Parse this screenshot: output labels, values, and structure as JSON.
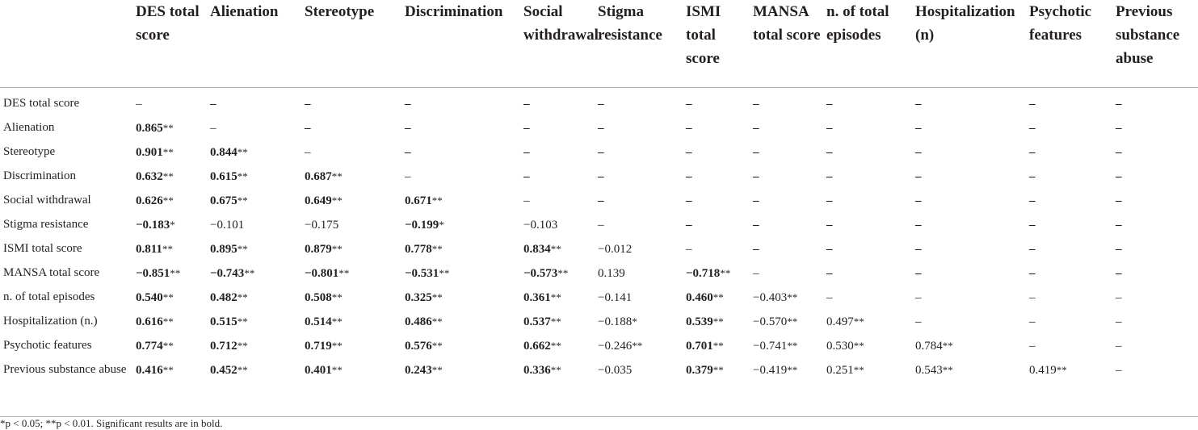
{
  "columns": [
    "DES total score",
    "Alienation",
    "Stereotype",
    "Discrimination",
    "Social withdrawal",
    "Stigma resistance",
    "ISMI total score",
    "MANSA total score",
    "n. of total episodes",
    "Hospitalization (n)",
    "Psychotic features",
    "Previous substance abuse"
  ],
  "rows": [
    {
      "label": "DES total score",
      "cells": [
        {
          "v": "–",
          "s": "",
          "b": false
        },
        {
          "v": "–",
          "s": "",
          "b": true
        },
        {
          "v": "–",
          "s": "",
          "b": true
        },
        {
          "v": "–",
          "s": "",
          "b": true
        },
        {
          "v": "–",
          "s": "",
          "b": true
        },
        {
          "v": "–",
          "s": "",
          "b": true
        },
        {
          "v": "–",
          "s": "",
          "b": true
        },
        {
          "v": "–",
          "s": "",
          "b": true
        },
        {
          "v": "–",
          "s": "",
          "b": true
        },
        {
          "v": "–",
          "s": "",
          "b": true
        },
        {
          "v": "–",
          "s": "",
          "b": true
        },
        {
          "v": "–",
          "s": "",
          "b": true
        }
      ]
    },
    {
      "label": "Alienation",
      "cells": [
        {
          "v": "0.865",
          "s": "**",
          "b": true
        },
        {
          "v": "–",
          "s": "",
          "b": false
        },
        {
          "v": "–",
          "s": "",
          "b": true
        },
        {
          "v": "–",
          "s": "",
          "b": true
        },
        {
          "v": "–",
          "s": "",
          "b": true
        },
        {
          "v": "–",
          "s": "",
          "b": true
        },
        {
          "v": "–",
          "s": "",
          "b": true
        },
        {
          "v": "–",
          "s": "",
          "b": true
        },
        {
          "v": "–",
          "s": "",
          "b": true
        },
        {
          "v": "–",
          "s": "",
          "b": true
        },
        {
          "v": "–",
          "s": "",
          "b": true
        },
        {
          "v": "–",
          "s": "",
          "b": true
        }
      ]
    },
    {
      "label": "Stereotype",
      "cells": [
        {
          "v": "0.901",
          "s": "**",
          "b": true
        },
        {
          "v": "0.844",
          "s": "**",
          "b": true
        },
        {
          "v": "–",
          "s": "",
          "b": false
        },
        {
          "v": "–",
          "s": "",
          "b": true
        },
        {
          "v": "–",
          "s": "",
          "b": true
        },
        {
          "v": "–",
          "s": "",
          "b": true
        },
        {
          "v": "–",
          "s": "",
          "b": true
        },
        {
          "v": "–",
          "s": "",
          "b": true
        },
        {
          "v": "–",
          "s": "",
          "b": true
        },
        {
          "v": "–",
          "s": "",
          "b": true
        },
        {
          "v": "–",
          "s": "",
          "b": true
        },
        {
          "v": "–",
          "s": "",
          "b": true
        }
      ]
    },
    {
      "label": "Discrimination",
      "cells": [
        {
          "v": "0.632",
          "s": "**",
          "b": true
        },
        {
          "v": "0.615",
          "s": "**",
          "b": true
        },
        {
          "v": "0.687",
          "s": "**",
          "b": true
        },
        {
          "v": "–",
          "s": "",
          "b": false
        },
        {
          "v": "–",
          "s": "",
          "b": true
        },
        {
          "v": "–",
          "s": "",
          "b": true
        },
        {
          "v": "–",
          "s": "",
          "b": true
        },
        {
          "v": "–",
          "s": "",
          "b": true
        },
        {
          "v": "–",
          "s": "",
          "b": true
        },
        {
          "v": "–",
          "s": "",
          "b": true
        },
        {
          "v": "–",
          "s": "",
          "b": true
        },
        {
          "v": "–",
          "s": "",
          "b": true
        }
      ]
    },
    {
      "label": "Social withdrawal",
      "cells": [
        {
          "v": "0.626",
          "s": "**",
          "b": true
        },
        {
          "v": "0.675",
          "s": "**",
          "b": true
        },
        {
          "v": "0.649",
          "s": "**",
          "b": true
        },
        {
          "v": "0.671",
          "s": "**",
          "b": true
        },
        {
          "v": "–",
          "s": "",
          "b": false
        },
        {
          "v": "–",
          "s": "",
          "b": true
        },
        {
          "v": "–",
          "s": "",
          "b": true
        },
        {
          "v": "–",
          "s": "",
          "b": true
        },
        {
          "v": "–",
          "s": "",
          "b": true
        },
        {
          "v": "–",
          "s": "",
          "b": true
        },
        {
          "v": "–",
          "s": "",
          "b": true
        },
        {
          "v": "–",
          "s": "",
          "b": true
        }
      ]
    },
    {
      "label": "Stigma resistance",
      "cells": [
        {
          "v": "−0.183",
          "s": "*",
          "b": true
        },
        {
          "v": "−0.101",
          "s": "",
          "b": false
        },
        {
          "v": "−0.175",
          "s": "",
          "b": false
        },
        {
          "v": "−0.199",
          "s": "*",
          "b": true
        },
        {
          "v": "−0.103",
          "s": "",
          "b": false
        },
        {
          "v": "–",
          "s": "",
          "b": false
        },
        {
          "v": "–",
          "s": "",
          "b": true
        },
        {
          "v": "–",
          "s": "",
          "b": true
        },
        {
          "v": "–",
          "s": "",
          "b": true
        },
        {
          "v": "–",
          "s": "",
          "b": true
        },
        {
          "v": "–",
          "s": "",
          "b": true
        },
        {
          "v": "–",
          "s": "",
          "b": true
        }
      ]
    },
    {
      "label": "ISMI total score",
      "cells": [
        {
          "v": "0.811",
          "s": "**",
          "b": true
        },
        {
          "v": "0.895",
          "s": "**",
          "b": true
        },
        {
          "v": "0.879",
          "s": "**",
          "b": true
        },
        {
          "v": "0.778",
          "s": "**",
          "b": true
        },
        {
          "v": "0.834",
          "s": "**",
          "b": true
        },
        {
          "v": "−0.012",
          "s": "",
          "b": false
        },
        {
          "v": "–",
          "s": "",
          "b": false
        },
        {
          "v": "–",
          "s": "",
          "b": true
        },
        {
          "v": "–",
          "s": "",
          "b": true
        },
        {
          "v": "–",
          "s": "",
          "b": true
        },
        {
          "v": "–",
          "s": "",
          "b": true
        },
        {
          "v": "–",
          "s": "",
          "b": true
        }
      ]
    },
    {
      "label": "MANSA total score",
      "cells": [
        {
          "v": "−0.851",
          "s": "**",
          "b": true
        },
        {
          "v": "−0.743",
          "s": "**",
          "b": true
        },
        {
          "v": "−0.801",
          "s": "**",
          "b": true
        },
        {
          "v": "−0.531",
          "s": "**",
          "b": true
        },
        {
          "v": "−0.573",
          "s": "**",
          "b": true
        },
        {
          "v": "0.139",
          "s": "",
          "b": false
        },
        {
          "v": "−0.718",
          "s": "**",
          "b": true
        },
        {
          "v": "–",
          "s": "",
          "b": false
        },
        {
          "v": "–",
          "s": "",
          "b": true
        },
        {
          "v": "–",
          "s": "",
          "b": true
        },
        {
          "v": "–",
          "s": "",
          "b": true
        },
        {
          "v": "–",
          "s": "",
          "b": true
        }
      ]
    },
    {
      "label": "n. of total episodes",
      "cells": [
        {
          "v": "0.540",
          "s": "**",
          "b": true
        },
        {
          "v": "0.482",
          "s": "**",
          "b": true
        },
        {
          "v": "0.508",
          "s": "**",
          "b": true
        },
        {
          "v": "0.325",
          "s": "**",
          "b": true
        },
        {
          "v": "0.361",
          "s": "**",
          "b": true
        },
        {
          "v": "−0.141",
          "s": "",
          "b": false
        },
        {
          "v": "0.460",
          "s": "**",
          "b": true
        },
        {
          "v": "−0.403",
          "s": "**",
          "b": false
        },
        {
          "v": "–",
          "s": "",
          "b": false
        },
        {
          "v": "–",
          "s": "",
          "b": false
        },
        {
          "v": "–",
          "s": "",
          "b": false
        },
        {
          "v": "–",
          "s": "",
          "b": false
        }
      ]
    },
    {
      "label": "Hospitalization (n.)",
      "cells": [
        {
          "v": "0.616",
          "s": "**",
          "b": true
        },
        {
          "v": "0.515",
          "s": "**",
          "b": true
        },
        {
          "v": "0.514",
          "s": "**",
          "b": true
        },
        {
          "v": "0.486",
          "s": "**",
          "b": true
        },
        {
          "v": "0.537",
          "s": "**",
          "b": true
        },
        {
          "v": "−0.188",
          "s": "*",
          "b": false
        },
        {
          "v": "0.539",
          "s": "**",
          "b": true
        },
        {
          "v": "−0.570",
          "s": "**",
          "b": false
        },
        {
          "v": "0.497",
          "s": "**",
          "b": false
        },
        {
          "v": "–",
          "s": "",
          "b": false
        },
        {
          "v": "–",
          "s": "",
          "b": false
        },
        {
          "v": "–",
          "s": "",
          "b": false
        }
      ]
    },
    {
      "label": "Psychotic features",
      "cells": [
        {
          "v": "0.774",
          "s": "**",
          "b": true
        },
        {
          "v": "0.712",
          "s": "**",
          "b": true
        },
        {
          "v": "0.719",
          "s": "**",
          "b": true
        },
        {
          "v": "0.576",
          "s": "**",
          "b": true
        },
        {
          "v": "0.662",
          "s": "**",
          "b": true
        },
        {
          "v": "−0.246",
          "s": "**",
          "b": false
        },
        {
          "v": "0.701",
          "s": "**",
          "b": true
        },
        {
          "v": "−0.741",
          "s": "**",
          "b": false
        },
        {
          "v": "0.530",
          "s": "**",
          "b": false
        },
        {
          "v": "0.784",
          "s": "**",
          "b": false
        },
        {
          "v": "–",
          "s": "",
          "b": false
        },
        {
          "v": "–",
          "s": "",
          "b": false
        }
      ]
    },
    {
      "label": "Previous substance abuse",
      "cells": [
        {
          "v": "0.416",
          "s": "**",
          "b": true
        },
        {
          "v": "0.452",
          "s": "**",
          "b": true
        },
        {
          "v": "0.401",
          "s": "**",
          "b": true
        },
        {
          "v": "0.243",
          "s": "**",
          "b": true
        },
        {
          "v": "0.336",
          "s": "**",
          "b": true
        },
        {
          "v": "−0.035",
          "s": "",
          "b": false
        },
        {
          "v": "0.379",
          "s": "**",
          "b": true
        },
        {
          "v": "−0.419",
          "s": "**",
          "b": false
        },
        {
          "v": "0.251",
          "s": "**",
          "b": false
        },
        {
          "v": "0.543",
          "s": "**",
          "b": false
        },
        {
          "v": "0.419",
          "s": "**",
          "b": false
        },
        {
          "v": "–",
          "s": "",
          "b": false
        }
      ]
    }
  ],
  "footnote": "*p < 0.05; **p < 0.01. Significant results are in bold."
}
